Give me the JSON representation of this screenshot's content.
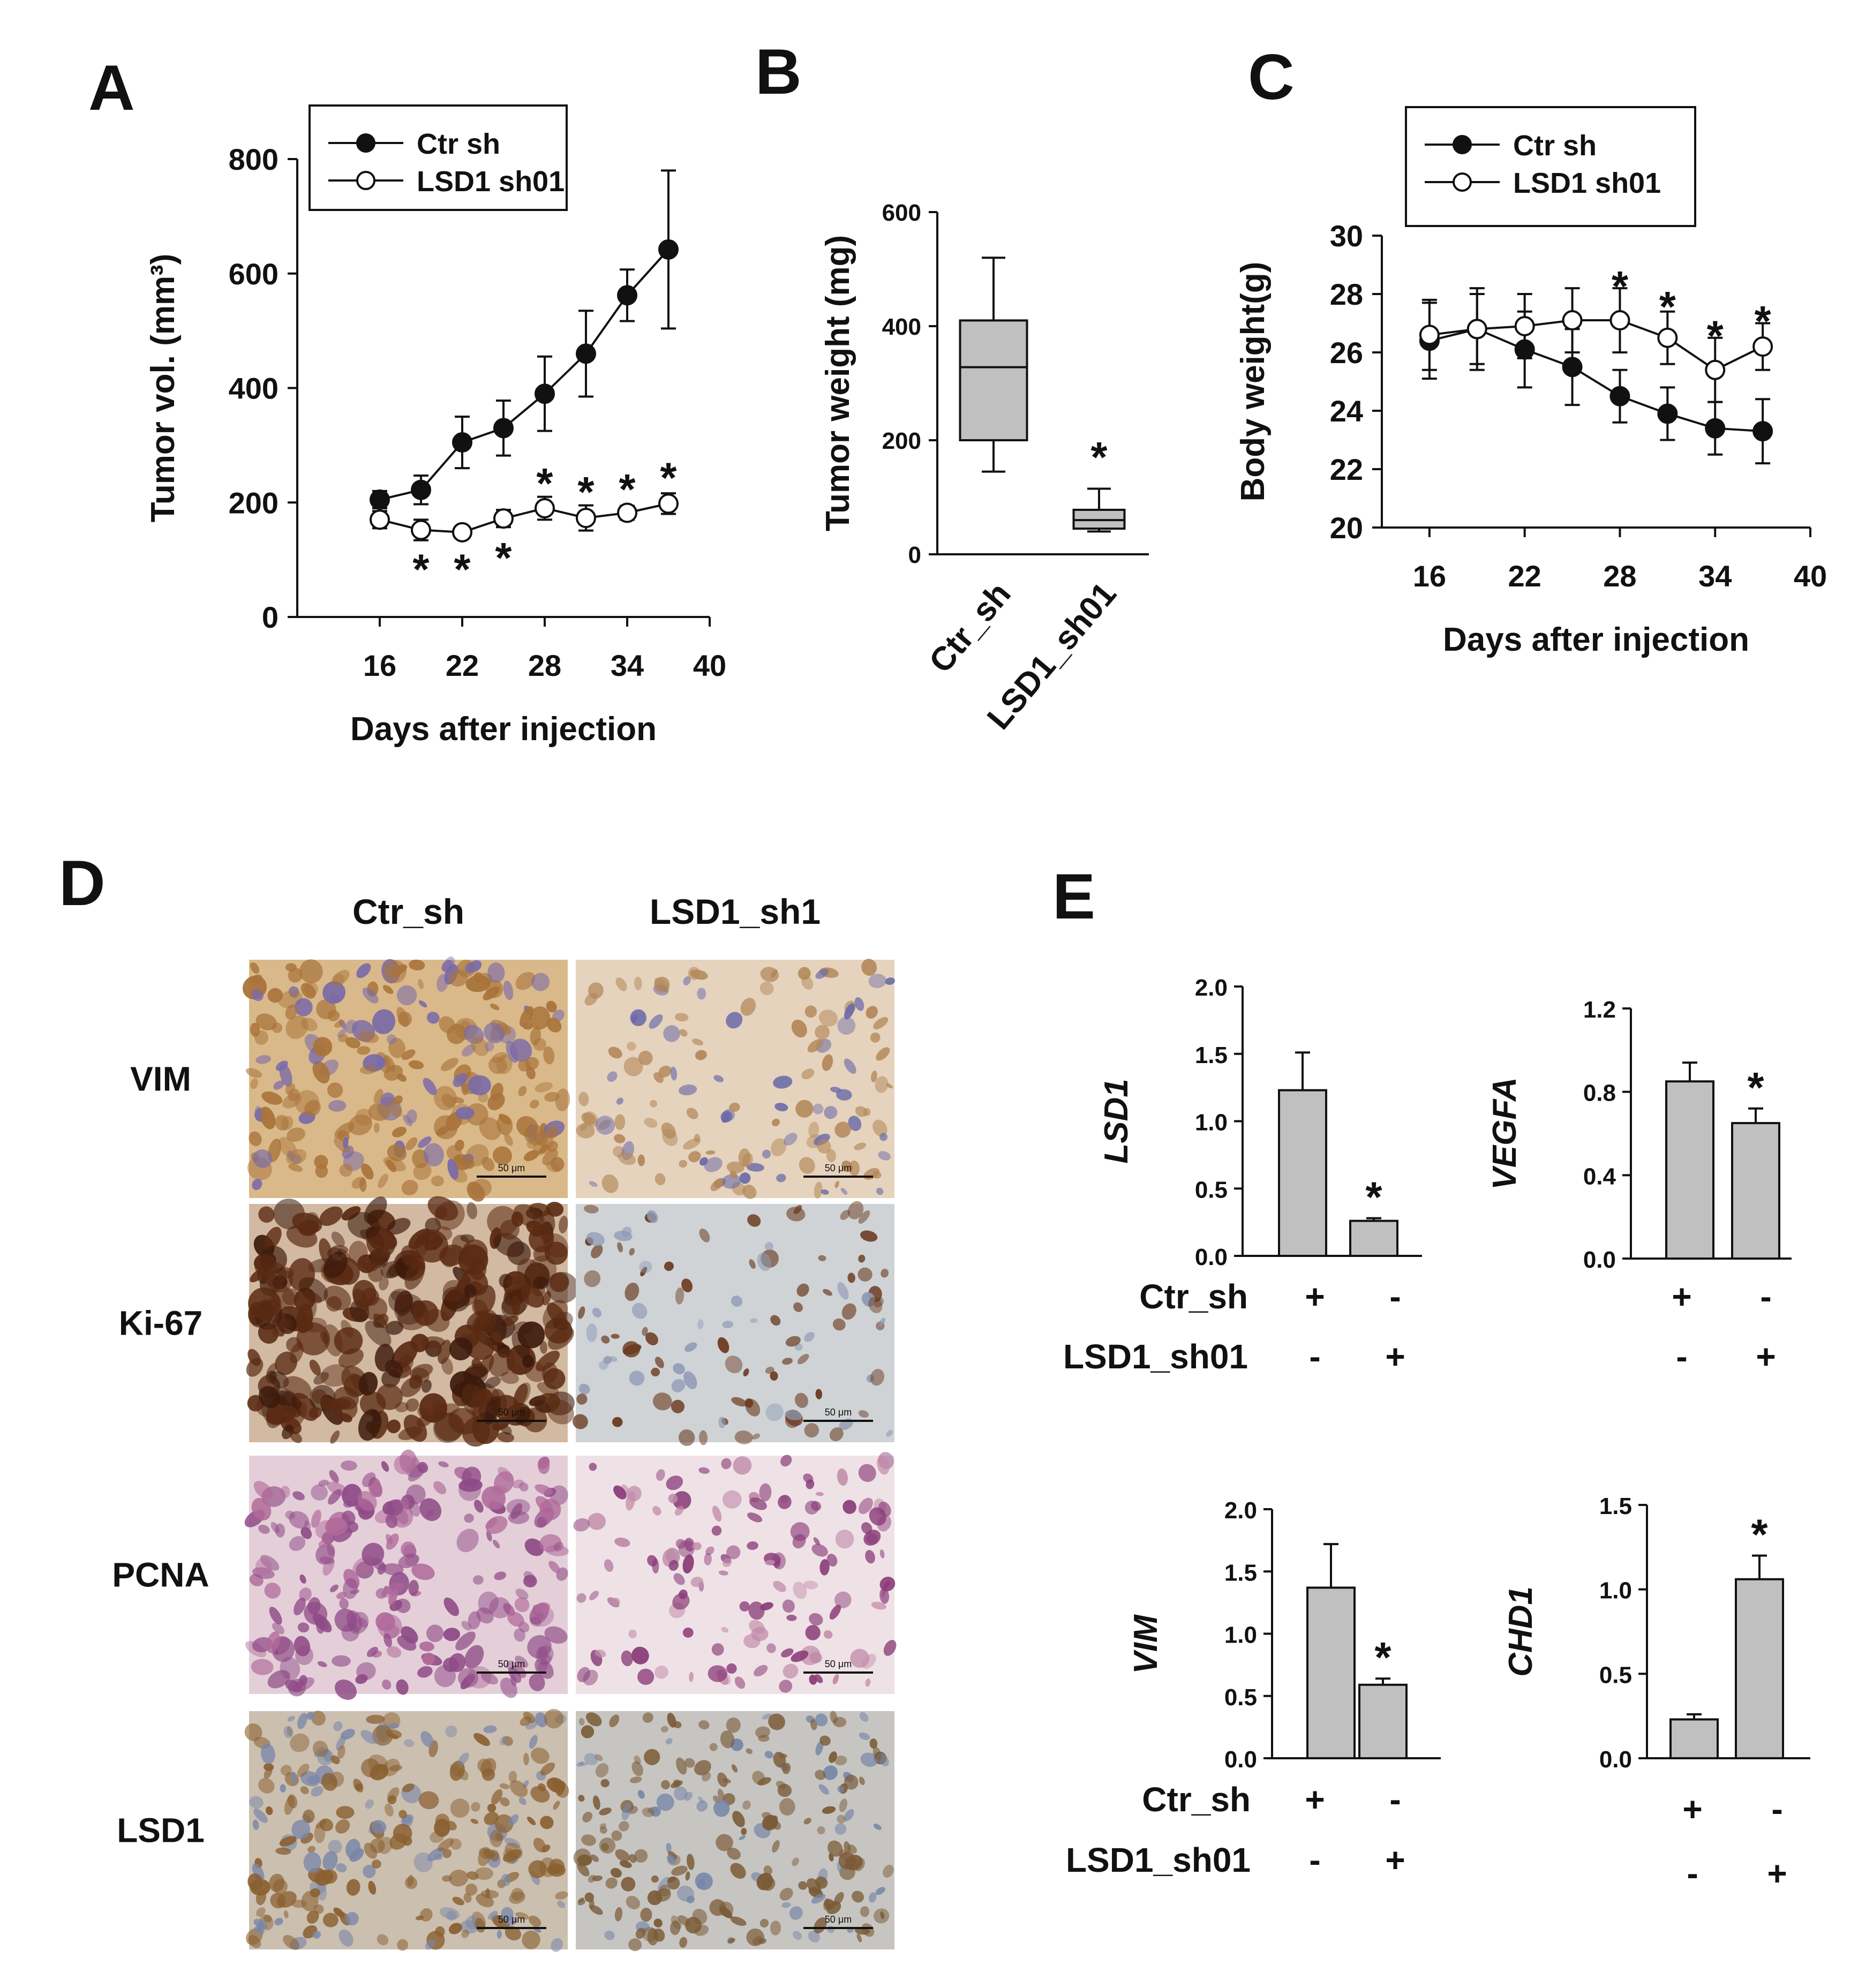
{
  "panels": {
    "A": {
      "letter": "A"
    },
    "B": {
      "letter": "B"
    },
    "C": {
      "letter": "C"
    },
    "D": {
      "letter": "D"
    },
    "E": {
      "letter": "E"
    }
  },
  "chart_data": [
    {
      "id": "A",
      "type": "line",
      "xlabel": "Days after injection",
      "ylabel": "Tumor vol. (mm³)",
      "xlim": [
        10,
        40
      ],
      "xticks": [
        16,
        22,
        28,
        34,
        40
      ],
      "ylim": [
        0,
        800
      ],
      "yticks": [
        0,
        200,
        400,
        600,
        800
      ],
      "legend_position": "top-left",
      "series": [
        {
          "name": "Ctr sh",
          "marker": "filled-circle",
          "x": [
            16,
            19,
            22,
            25,
            28,
            31,
            34,
            37
          ],
          "y": [
            205,
            222,
            305,
            330,
            390,
            460,
            562,
            642
          ],
          "err": [
            15,
            25,
            45,
            48,
            65,
            75,
            45,
            138
          ]
        },
        {
          "name": "LSD1 sh01",
          "marker": "open-circle",
          "x": [
            16,
            19,
            22,
            25,
            28,
            31,
            34,
            37
          ],
          "y": [
            170,
            152,
            148,
            172,
            190,
            173,
            182,
            198
          ],
          "err": [
            15,
            18,
            10,
            15,
            20,
            22,
            12,
            18
          ]
        }
      ],
      "annotations": [
        {
          "text": "*",
          "x": 19,
          "y": 95
        },
        {
          "text": "*",
          "x": 22,
          "y": 95
        },
        {
          "text": "*",
          "x": 25,
          "y": 115
        },
        {
          "text": "*",
          "x": 28,
          "y": 245
        },
        {
          "text": "*",
          "x": 31,
          "y": 230
        },
        {
          "text": "*",
          "x": 34,
          "y": 235
        },
        {
          "text": "*",
          "x": 37,
          "y": 255
        }
      ]
    },
    {
      "id": "B",
      "type": "box",
      "ylabel": "Tumor weight (mg)",
      "ylim": [
        0,
        600
      ],
      "yticks": [
        0,
        200,
        400,
        600
      ],
      "categories": [
        "Ctr_sh",
        "LSD1_sh01"
      ],
      "boxes": [
        {
          "whisker_low": 145,
          "q1": 200,
          "median": 328,
          "q3": 410,
          "whisker_high": 520
        },
        {
          "whisker_low": 40,
          "q1": 45,
          "median": 60,
          "q3": 78,
          "whisker_high": 115
        }
      ],
      "annotations": [
        {
          "text": "*",
          "category": "LSD1_sh01",
          "y": 135
        }
      ]
    },
    {
      "id": "C",
      "type": "line",
      "xlabel": "Days after injection",
      "ylabel": "Body weight(g)",
      "xlim": [
        13,
        40
      ],
      "xticks": [
        16,
        22,
        28,
        34,
        40
      ],
      "ylim": [
        20,
        30
      ],
      "yticks": [
        20,
        22,
        24,
        26,
        28,
        30
      ],
      "legend_position": "top-left",
      "series": [
        {
          "name": "Ctr sh",
          "marker": "filled-circle",
          "x": [
            16,
            19,
            22,
            25,
            28,
            31,
            34,
            37
          ],
          "y": [
            26.4,
            26.8,
            26.1,
            25.5,
            24.5,
            23.9,
            23.4,
            23.3
          ],
          "err": [
            1.3,
            1.4,
            1.3,
            1.3,
            0.9,
            0.9,
            0.9,
            1.1
          ]
        },
        {
          "name": "LSD1 sh01",
          "marker": "open-circle",
          "x": [
            16,
            19,
            22,
            25,
            28,
            31,
            34,
            37
          ],
          "y": [
            26.6,
            26.8,
            26.9,
            27.1,
            27.1,
            26.5,
            25.4,
            26.2
          ],
          "err": [
            1.2,
            1.2,
            1.1,
            1.1,
            1.1,
            0.9,
            1.1,
            0.8
          ]
        }
      ],
      "annotations": [
        {
          "text": "*",
          "x": 28,
          "y": 28.5
        },
        {
          "text": "*",
          "x": 31,
          "y": 27.8
        },
        {
          "text": "*",
          "x": 34,
          "y": 26.8
        },
        {
          "text": "*",
          "x": 37,
          "y": 27.3
        }
      ]
    },
    {
      "id": "E-LSD1",
      "type": "bar",
      "ylabel": "LSD1",
      "ylim": [
        0,
        2.0
      ],
      "yticks": [
        "0.0",
        "0.5",
        "1.0",
        "1.5",
        "2.0"
      ],
      "values": [
        1.23,
        0.26
      ],
      "err": [
        0.28,
        0.02
      ],
      "annotations": [
        {
          "text": "*",
          "bar": 1
        }
      ],
      "conditions": [
        {
          "label": "Ctr_sh",
          "signs": [
            "+",
            "-"
          ]
        },
        {
          "label": "LSD1_sh01",
          "signs": [
            "-",
            "+"
          ]
        }
      ]
    },
    {
      "id": "E-VEGFA",
      "type": "bar",
      "ylabel": "VEGFA",
      "ylim": [
        0,
        1.2
      ],
      "yticks": [
        "0.0",
        "0.4",
        "0.8",
        "1.2"
      ],
      "values": [
        0.85,
        0.65
      ],
      "err": [
        0.09,
        0.07
      ],
      "annotations": [
        {
          "text": "*",
          "bar": 1
        }
      ],
      "conditions": [
        {
          "label": "",
          "signs": [
            "+",
            "-"
          ]
        },
        {
          "label": "",
          "signs": [
            "-",
            "+"
          ]
        }
      ]
    },
    {
      "id": "E-VIM",
      "type": "bar",
      "ylabel": "VIM",
      "ylim": [
        0,
        2.0
      ],
      "yticks": [
        "0.0",
        "0.5",
        "1.0",
        "1.5",
        "2.0"
      ],
      "values": [
        1.37,
        0.59
      ],
      "err": [
        0.35,
        0.05
      ],
      "annotations": [
        {
          "text": "*",
          "bar": 1
        }
      ],
      "conditions": [
        {
          "label": "Ctr_sh",
          "signs": [
            "+",
            "-"
          ]
        },
        {
          "label": "LSD1_sh01",
          "signs": [
            "-",
            "+"
          ]
        }
      ]
    },
    {
      "id": "E-CHD1",
      "type": "bar",
      "ylabel": "CHD1",
      "ylim": [
        0,
        1.5
      ],
      "yticks": [
        "0.0",
        "0.5",
        "1.0",
        "1.5"
      ],
      "values": [
        0.23,
        1.06
      ],
      "err": [
        0.03,
        0.14
      ],
      "annotations": [
        {
          "text": "*",
          "bar": 1
        }
      ],
      "conditions": [
        {
          "label": "",
          "signs": [
            "+",
            "-"
          ]
        },
        {
          "label": "",
          "signs": [
            "-",
            "+"
          ]
        }
      ]
    }
  ],
  "ihc": {
    "columns": [
      "Ctr_sh",
      "LSD1_sh1"
    ],
    "rows": [
      {
        "label": "VIM",
        "scale_bar": "50 μm",
        "tiles": [
          {
            "base": "#d9b98a",
            "spot": "#a8733a",
            "accent": "#7a6aa8",
            "density": 240,
            "size": 18
          },
          {
            "base": "#e6d3bd",
            "spot": "#b28758",
            "accent": "#6a6aa8",
            "density": 140,
            "size": 14
          }
        ]
      },
      {
        "label": "Ki-67",
        "scale_bar": "50 μm",
        "tiles": [
          {
            "base": "#d2b9a2",
            "spot": "#5a2a12",
            "accent": "#3c1a0c",
            "density": 320,
            "size": 24
          },
          {
            "base": "#cfd3d6",
            "spot": "#6a3a1e",
            "accent": "#8e98b4",
            "density": 110,
            "size": 14
          }
        ]
      },
      {
        "label": "PCNA",
        "scale_bar": "50 μm",
        "tiles": [
          {
            "base": "#e4cfd8",
            "spot": "#8e4a86",
            "accent": "#b06a9a",
            "density": 230,
            "size": 18
          },
          {
            "base": "#efe2e6",
            "spot": "#8a3c78",
            "accent": "#c08aa8",
            "density": 140,
            "size": 14
          }
        ]
      },
      {
        "label": "LSD1",
        "scale_bar": "50 μm",
        "tiles": [
          {
            "base": "#cbbfb0",
            "spot": "#8a6030",
            "accent": "#7a86a8",
            "density": 260,
            "size": 15
          },
          {
            "base": "#c7c5c2",
            "spot": "#7a5a36",
            "accent": "#7686a6",
            "density": 230,
            "size": 13
          }
        ]
      }
    ]
  }
}
